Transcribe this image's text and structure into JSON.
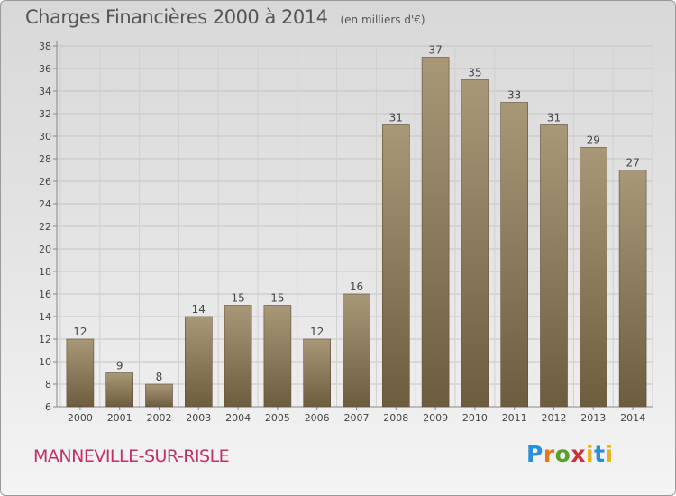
{
  "title": "Charges Financières 2000 à 2014",
  "subtitle": "(en milliers d'€)",
  "commune": "MANNEVILLE-SUR-RISLE",
  "brand": {
    "p": "P",
    "r": "r",
    "o": "o",
    "x": "x",
    "i": "i",
    "t": "t",
    "i2": "i"
  },
  "colors": {
    "bar_top": "#a89878",
    "bar_bottom": "#6e5c3e",
    "commune": "#c0306a"
  },
  "chart_data": {
    "type": "bar",
    "title": "Charges Financières 2000 à 2014",
    "subtitle": "(en milliers d'€)",
    "categories": [
      "2000",
      "2001",
      "2002",
      "2003",
      "2004",
      "2005",
      "2006",
      "2007",
      "2008",
      "2009",
      "2010",
      "2011",
      "2012",
      "2013",
      "2014"
    ],
    "values": [
      12,
      9,
      8,
      14,
      15,
      15,
      12,
      16,
      31,
      37,
      35,
      33,
      31,
      29,
      27
    ],
    "ylim": [
      6,
      38
    ],
    "yticks": [
      6,
      8,
      10,
      12,
      14,
      16,
      18,
      20,
      22,
      24,
      26,
      28,
      30,
      32,
      34,
      36,
      38
    ],
    "grid": true,
    "legend": "none"
  }
}
